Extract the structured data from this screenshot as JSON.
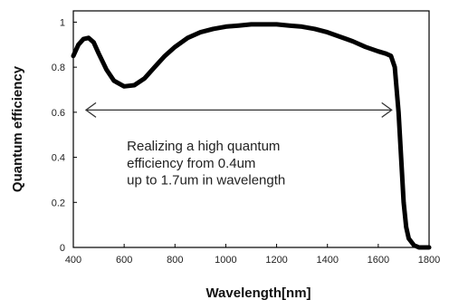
{
  "chart_data": {
    "type": "line",
    "xlabel": "Wavelength[nm]",
    "ylabel": "Quantum efficiency",
    "xlim": [
      400,
      1800
    ],
    "ylim": [
      0,
      1.05
    ],
    "xticks": [
      400,
      600,
      800,
      1000,
      1200,
      1400,
      1600,
      1800
    ],
    "yticks": [
      0,
      0.2,
      0.4,
      0.6,
      0.8,
      1
    ],
    "ytick_labels": [
      "0",
      "0.2",
      "0.4",
      "0.6",
      "0.8",
      "1"
    ],
    "grid": false,
    "legend": "none",
    "line_color": "#000000",
    "series": [
      {
        "x": [
          400,
          420,
          440,
          460,
          480,
          500,
          530,
          560,
          600,
          640,
          680,
          720,
          760,
          800,
          850,
          900,
          950,
          1000,
          1050,
          1100,
          1150,
          1200,
          1250,
          1300,
          1350,
          1400,
          1450,
          1500,
          1550,
          1600,
          1630,
          1650,
          1665,
          1680,
          1690,
          1700,
          1710,
          1720,
          1740,
          1760,
          1780,
          1800
        ],
        "y": [
          0.85,
          0.9,
          0.925,
          0.93,
          0.91,
          0.86,
          0.79,
          0.74,
          0.715,
          0.72,
          0.75,
          0.8,
          0.85,
          0.89,
          0.93,
          0.955,
          0.97,
          0.98,
          0.985,
          0.99,
          0.99,
          0.99,
          0.985,
          0.98,
          0.97,
          0.955,
          0.935,
          0.915,
          0.89,
          0.87,
          0.86,
          0.85,
          0.8,
          0.6,
          0.4,
          0.2,
          0.09,
          0.04,
          0.01,
          0.0,
          0.0,
          0.0
        ]
      }
    ],
    "annotation": {
      "arrow_from": [
        400,
        0.61
      ],
      "arrow_to": [
        1660,
        0.61
      ],
      "lines": [
        "Realizing a high quantum",
        "efficiency from 0.4um",
        "up to 1.7um in wavelength"
      ]
    }
  }
}
